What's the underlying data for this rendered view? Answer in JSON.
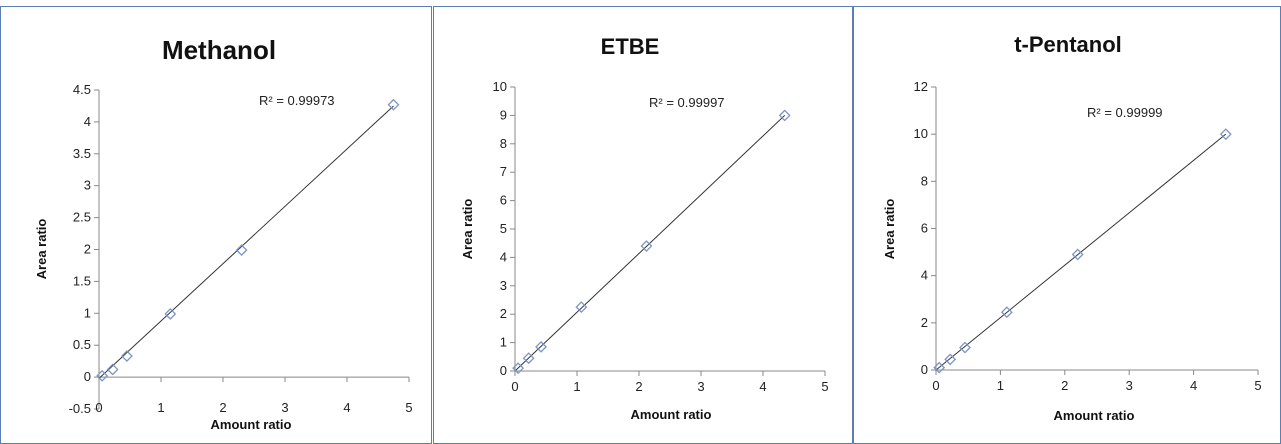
{
  "chart_data": [
    {
      "type": "scatter",
      "title": "Methanol",
      "xlabel": "Amount ratio",
      "ylabel": "Area ratio",
      "xlim": [
        0,
        5
      ],
      "ylim": [
        -0.5,
        4.5
      ],
      "xticks": [
        "0",
        "1",
        "2",
        "3",
        "4",
        "5"
      ],
      "yticks": [
        "-0.5",
        "0",
        "0.5",
        "1",
        "1.5",
        "2",
        "2.5",
        "3",
        "3.5",
        "4",
        "4.5"
      ],
      "annotation": "R² = 0.99973",
      "trendline": {
        "x": [
          0.0,
          4.75
        ],
        "y": [
          -0.02,
          4.25
        ]
      },
      "x": [
        0.05,
        0.22,
        0.45,
        1.15,
        2.3,
        4.75
      ],
      "y": [
        0.02,
        0.12,
        0.33,
        0.99,
        1.99,
        4.27
      ],
      "marker": "diamond",
      "marker_color": "#7a95c8",
      "grid": false
    },
    {
      "type": "scatter",
      "title": "ETBE",
      "xlabel": "Amount ratio",
      "ylabel": "Area ratio",
      "xlim": [
        0,
        5
      ],
      "ylim": [
        0,
        10
      ],
      "xticks": [
        "0",
        "1",
        "2",
        "3",
        "4",
        "5"
      ],
      "yticks": [
        "0",
        "1",
        "2",
        "3",
        "4",
        "5",
        "6",
        "7",
        "8",
        "9",
        "10"
      ],
      "annotation": "R² = 0.99997",
      "trendline": {
        "x": [
          0.0,
          4.35
        ],
        "y": [
          0.0,
          9.0
        ]
      },
      "x": [
        0.05,
        0.22,
        0.42,
        1.07,
        2.12,
        4.35
      ],
      "y": [
        0.1,
        0.45,
        0.85,
        2.25,
        4.4,
        9.0
      ],
      "marker": "diamond",
      "marker_color": "#7a95c8",
      "grid": false
    },
    {
      "type": "scatter",
      "title": "t-Pentanol",
      "xlabel": "Amount ratio",
      "ylabel": "Area ratio",
      "xlim": [
        0,
        5
      ],
      "ylim": [
        0,
        12
      ],
      "xticks": [
        "0",
        "1",
        "2",
        "3",
        "4",
        "5"
      ],
      "yticks": [
        "0",
        "2",
        "4",
        "6",
        "8",
        "10",
        "12"
      ],
      "annotation": "R² = 0.99999",
      "trendline": {
        "x": [
          0.0,
          4.5
        ],
        "y": [
          0.0,
          10.0
        ]
      },
      "x": [
        0.05,
        0.22,
        0.45,
        1.1,
        2.2,
        4.5
      ],
      "y": [
        0.1,
        0.45,
        0.95,
        2.45,
        4.9,
        10.0
      ],
      "marker": "diamond",
      "marker_color": "#7a95c8",
      "grid": false
    }
  ]
}
